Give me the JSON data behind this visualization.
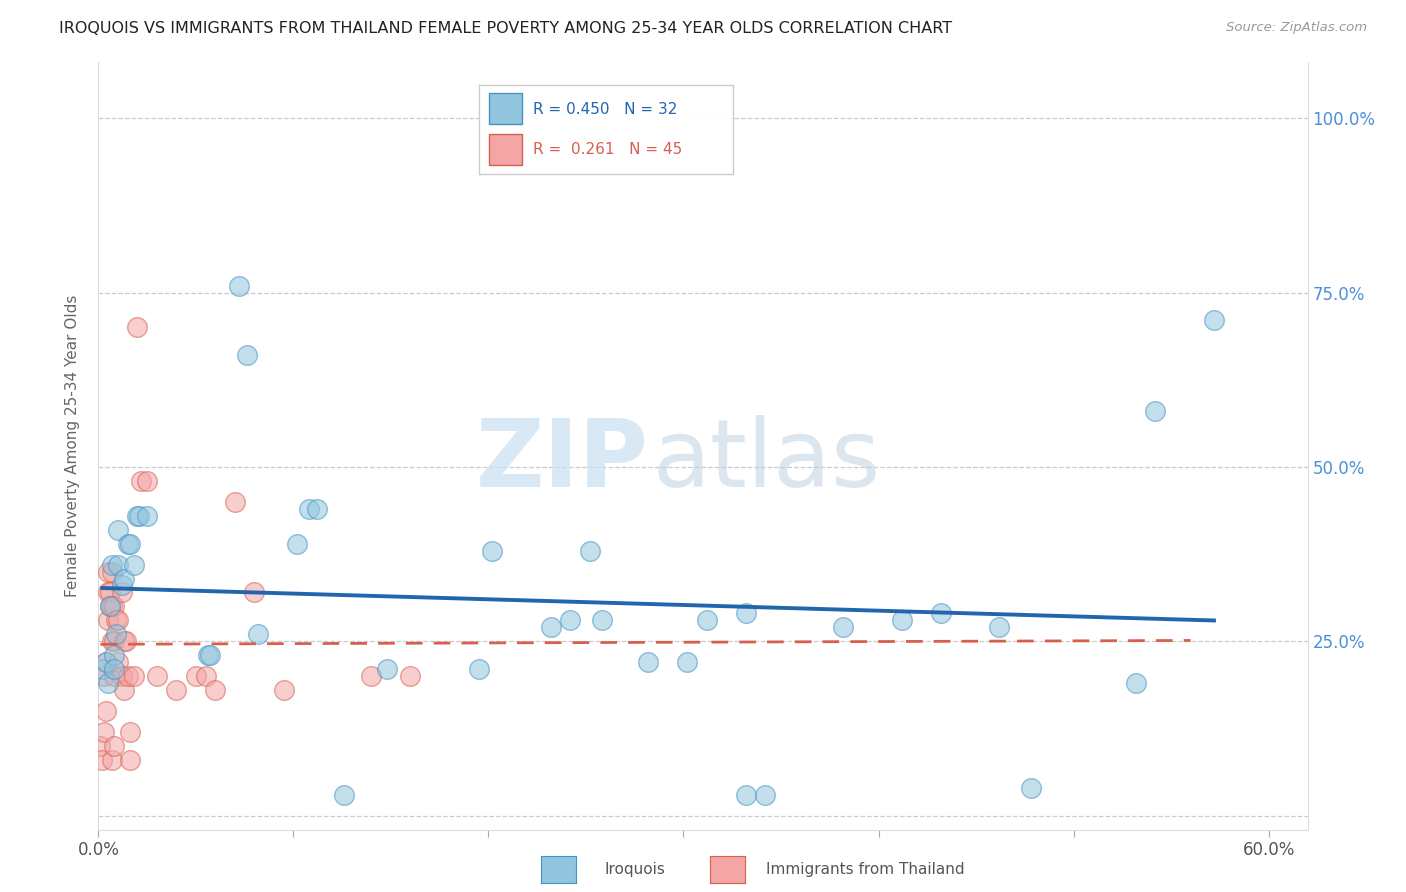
{
  "title": "IROQUOIS VS IMMIGRANTS FROM THAILAND FEMALE POVERTY AMONG 25-34 YEAR OLDS CORRELATION CHART",
  "source": "Source: ZipAtlas.com",
  "ylabel": "Female Poverty Among 25-34 Year Olds",
  "xlim": [
    0.0,
    0.62
  ],
  "ylim": [
    -0.02,
    1.08
  ],
  "xticks": [
    0.0,
    0.1,
    0.2,
    0.3,
    0.4,
    0.5,
    0.6
  ],
  "xticklabels": [
    "0.0%",
    "",
    "",
    "",
    "",
    "",
    "60.0%"
  ],
  "yticks": [
    0.0,
    0.25,
    0.5,
    0.75,
    1.0
  ],
  "yticklabels": [
    "",
    "25.0%",
    "50.0%",
    "75.0%",
    "100.0%"
  ],
  "blue_color": "#92c5de",
  "blue_edge_color": "#4393c3",
  "pink_color": "#f4a5a5",
  "pink_edge_color": "#d6604d",
  "trendline_blue_color": "#2166ac",
  "trendline_pink_color": "#d6604d",
  "blue_scatter": [
    [
      0.002,
      0.21
    ],
    [
      0.004,
      0.22
    ],
    [
      0.005,
      0.19
    ],
    [
      0.006,
      0.3
    ],
    [
      0.007,
      0.36
    ],
    [
      0.008,
      0.23
    ],
    [
      0.008,
      0.21
    ],
    [
      0.009,
      0.26
    ],
    [
      0.01,
      0.41
    ],
    [
      0.01,
      0.36
    ],
    [
      0.012,
      0.33
    ],
    [
      0.013,
      0.34
    ],
    [
      0.015,
      0.39
    ],
    [
      0.016,
      0.39
    ],
    [
      0.018,
      0.36
    ],
    [
      0.02,
      0.43
    ],
    [
      0.021,
      0.43
    ],
    [
      0.025,
      0.43
    ],
    [
      0.056,
      0.23
    ],
    [
      0.057,
      0.23
    ],
    [
      0.072,
      0.76
    ],
    [
      0.076,
      0.66
    ],
    [
      0.082,
      0.26
    ],
    [
      0.102,
      0.39
    ],
    [
      0.108,
      0.44
    ],
    [
      0.112,
      0.44
    ],
    [
      0.126,
      0.03
    ],
    [
      0.148,
      0.21
    ],
    [
      0.195,
      0.21
    ],
    [
      0.202,
      0.38
    ],
    [
      0.232,
      0.27
    ],
    [
      0.242,
      0.28
    ],
    [
      0.252,
      0.38
    ],
    [
      0.258,
      0.28
    ],
    [
      0.282,
      0.22
    ],
    [
      0.302,
      0.22
    ],
    [
      0.312,
      0.28
    ],
    [
      0.332,
      0.29
    ],
    [
      0.332,
      0.03
    ],
    [
      0.342,
      0.03
    ],
    [
      0.382,
      0.27
    ],
    [
      0.412,
      0.28
    ],
    [
      0.432,
      0.29
    ],
    [
      0.462,
      0.27
    ],
    [
      0.478,
      0.04
    ],
    [
      0.532,
      0.19
    ],
    [
      0.542,
      0.58
    ],
    [
      0.572,
      0.71
    ]
  ],
  "pink_scatter": [
    [
      0.001,
      0.1
    ],
    [
      0.002,
      0.08
    ],
    [
      0.003,
      0.12
    ],
    [
      0.003,
      0.2
    ],
    [
      0.004,
      0.15
    ],
    [
      0.004,
      0.22
    ],
    [
      0.005,
      0.32
    ],
    [
      0.005,
      0.35
    ],
    [
      0.005,
      0.28
    ],
    [
      0.006,
      0.32
    ],
    [
      0.006,
      0.3
    ],
    [
      0.007,
      0.25
    ],
    [
      0.007,
      0.35
    ],
    [
      0.007,
      0.3
    ],
    [
      0.007,
      0.08
    ],
    [
      0.008,
      0.2
    ],
    [
      0.008,
      0.3
    ],
    [
      0.008,
      0.25
    ],
    [
      0.008,
      0.1
    ],
    [
      0.009,
      0.28
    ],
    [
      0.01,
      0.28
    ],
    [
      0.01,
      0.22
    ],
    [
      0.012,
      0.32
    ],
    [
      0.012,
      0.2
    ],
    [
      0.013,
      0.18
    ],
    [
      0.013,
      0.25
    ],
    [
      0.014,
      0.25
    ],
    [
      0.015,
      0.2
    ],
    [
      0.016,
      0.12
    ],
    [
      0.016,
      0.08
    ],
    [
      0.018,
      0.2
    ],
    [
      0.02,
      0.7
    ],
    [
      0.022,
      0.48
    ],
    [
      0.025,
      0.48
    ],
    [
      0.03,
      0.2
    ],
    [
      0.04,
      0.18
    ],
    [
      0.05,
      0.2
    ],
    [
      0.055,
      0.2
    ],
    [
      0.06,
      0.18
    ],
    [
      0.07,
      0.45
    ],
    [
      0.08,
      0.32
    ],
    [
      0.095,
      0.18
    ],
    [
      0.14,
      0.2
    ],
    [
      0.16,
      0.2
    ]
  ],
  "watermark_zip": "ZIP",
  "watermark_atlas": "atlas"
}
